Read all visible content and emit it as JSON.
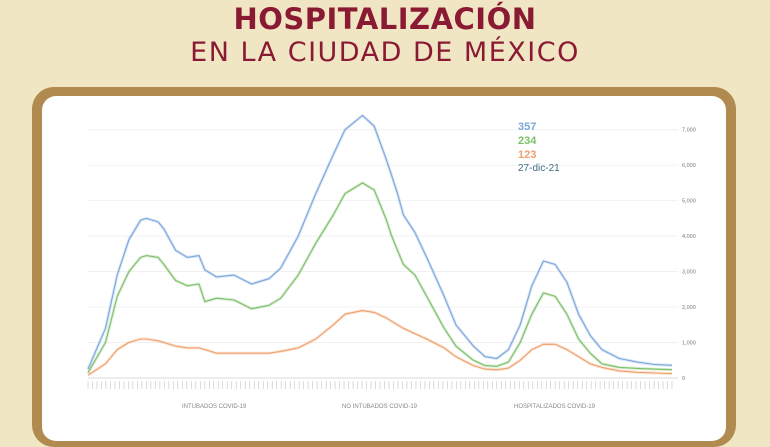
{
  "header": {
    "title": "HOSPITALIZACIÓN",
    "subtitle": "EN LA CIUDAD DE MÉXICO"
  },
  "colors": {
    "title": "#8a1a33",
    "background": "#f1e6c4",
    "frame": "#b08a4f",
    "hospitalizados": "#7ba7dc",
    "no_intubados": "#7cc06a",
    "intubados": "#f0a06c",
    "date_label": "#3d6b86"
  },
  "chart_data": {
    "type": "line",
    "title": "",
    "ylim": [
      0,
      7500
    ],
    "yticks": [
      0,
      1000,
      2000,
      3000,
      4000,
      5000,
      6000,
      7000
    ],
    "ytick_labels": [
      "0",
      "1,000",
      "2,000",
      "3,000",
      "4,000",
      "5,000",
      "6,000",
      "7,000"
    ],
    "x_index_range": [
      0,
      100
    ],
    "grid": true,
    "legend_position": "bottom",
    "annotations": {
      "hospitalizados": "357",
      "no_intubados": "234",
      "intubados": "123",
      "date": "27-dic-21"
    },
    "series": [
      {
        "key": "hospitalizados",
        "name": "HOSPITALIZADOS COVID-19",
        "x": [
          0,
          3,
          5,
          7,
          9,
          10,
          12,
          13,
          15,
          17,
          19,
          20,
          22,
          25,
          28,
          31,
          33,
          36,
          39,
          42,
          44,
          47,
          49,
          51,
          52,
          53,
          54,
          56,
          58,
          61,
          63,
          66,
          68,
          70,
          72,
          74,
          76,
          78,
          80,
          82,
          84,
          86,
          88,
          91,
          94,
          97,
          100
        ],
        "values": [
          250,
          1400,
          2900,
          3900,
          4450,
          4500,
          4400,
          4200,
          3600,
          3400,
          3450,
          3050,
          2850,
          2900,
          2650,
          2800,
          3100,
          4000,
          5200,
          6300,
          7000,
          7400,
          7100,
          6200,
          5700,
          5200,
          4600,
          4100,
          3400,
          2300,
          1500,
          900,
          600,
          550,
          800,
          1500,
          2600,
          3300,
          3200,
          2700,
          1800,
          1200,
          800,
          550,
          450,
          380,
          357
        ]
      },
      {
        "key": "no_intubados",
        "name": "NO INTUBADOS COVID-19",
        "x": [
          0,
          3,
          5,
          7,
          9,
          10,
          12,
          13,
          15,
          17,
          19,
          20,
          22,
          25,
          28,
          31,
          33,
          36,
          39,
          42,
          44,
          47,
          49,
          51,
          52,
          53,
          54,
          56,
          58,
          61,
          63,
          66,
          68,
          70,
          72,
          74,
          76,
          78,
          80,
          82,
          84,
          86,
          88,
          91,
          94,
          97,
          100
        ],
        "values": [
          150,
          1000,
          2300,
          3000,
          3400,
          3450,
          3400,
          3200,
          2750,
          2600,
          2650,
          2150,
          2250,
          2200,
          1950,
          2050,
          2250,
          2900,
          3800,
          4600,
          5200,
          5500,
          5300,
          4500,
          4000,
          3600,
          3200,
          2900,
          2300,
          1400,
          900,
          500,
          350,
          330,
          450,
          1000,
          1800,
          2400,
          2300,
          1800,
          1100,
          700,
          400,
          300,
          270,
          250,
          234
        ]
      },
      {
        "key": "intubados",
        "name": "INTUBADOS COVID-19",
        "x": [
          0,
          3,
          5,
          7,
          9,
          10,
          12,
          13,
          15,
          17,
          19,
          20,
          22,
          25,
          28,
          31,
          33,
          36,
          39,
          42,
          44,
          47,
          49,
          51,
          52,
          53,
          54,
          56,
          58,
          61,
          63,
          66,
          68,
          70,
          72,
          74,
          76,
          78,
          80,
          82,
          84,
          86,
          88,
          91,
          94,
          97,
          100
        ],
        "values": [
          80,
          400,
          800,
          1000,
          1100,
          1100,
          1050,
          1000,
          900,
          850,
          850,
          800,
          700,
          700,
          700,
          700,
          750,
          850,
          1100,
          1500,
          1800,
          1900,
          1850,
          1700,
          1600,
          1500,
          1400,
          1250,
          1100,
          850,
          600,
          350,
          250,
          230,
          280,
          500,
          800,
          950,
          950,
          800,
          600,
          400,
          300,
          200,
          160,
          140,
          123
        ]
      }
    ]
  }
}
